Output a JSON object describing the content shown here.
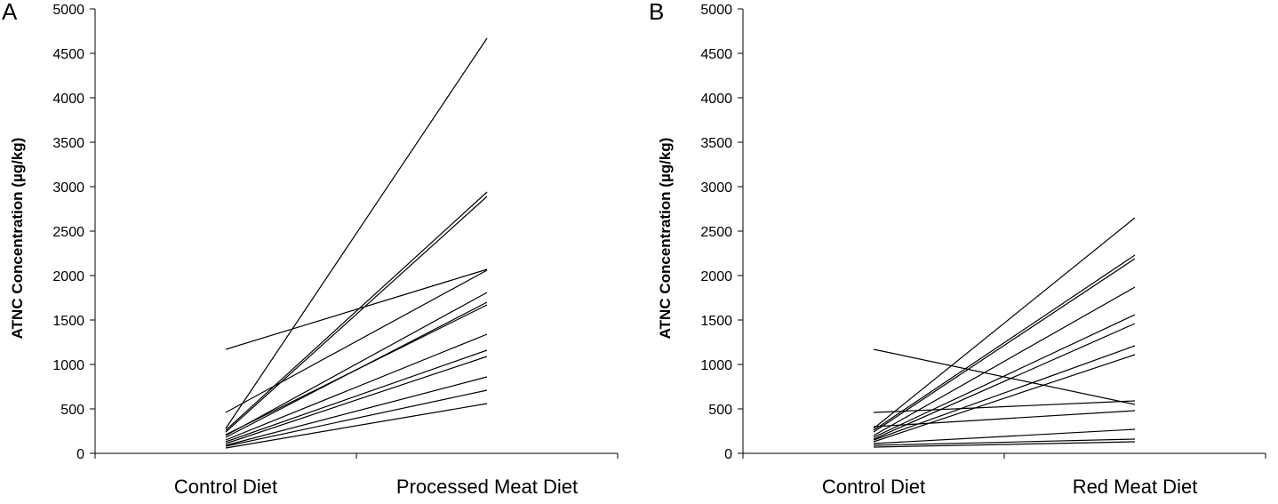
{
  "chart_data": [
    {
      "type": "line",
      "panel_label": "A",
      "ylabel": "ATNC Concentration (µg/kg)",
      "ylim": [
        0,
        5000
      ],
      "yticks": [
        0,
        500,
        1000,
        1500,
        2000,
        2500,
        3000,
        3500,
        4000,
        4500,
        5000
      ],
      "categories": [
        "Control Diet",
        "Processed Meat Diet"
      ],
      "grid": false,
      "legend": "none",
      "series": [
        {
          "values": [
            280,
            4670
          ]
        },
        {
          "values": [
            260,
            2940
          ]
        },
        {
          "values": [
            240,
            2890
          ]
        },
        {
          "values": [
            1170,
            2070
          ]
        },
        {
          "values": [
            460,
            2060
          ]
        },
        {
          "values": [
            200,
            1810
          ]
        },
        {
          "values": [
            180,
            1700
          ]
        },
        {
          "values": [
            210,
            1670
          ]
        },
        {
          "values": [
            150,
            1340
          ]
        },
        {
          "values": [
            130,
            1160
          ]
        },
        {
          "values": [
            110,
            1090
          ]
        },
        {
          "values": [
            90,
            860
          ]
        },
        {
          "values": [
            80,
            710
          ]
        },
        {
          "values": [
            60,
            560
          ]
        }
      ]
    },
    {
      "type": "line",
      "panel_label": "B",
      "ylabel": "ATNC Concentration (µg/kg)",
      "ylim": [
        0,
        5000
      ],
      "yticks": [
        0,
        500,
        1000,
        1500,
        2000,
        2500,
        3000,
        3500,
        4000,
        4500,
        5000
      ],
      "categories": [
        "Control Diet",
        "Red Meat Diet"
      ],
      "grid": false,
      "legend": "none",
      "series": [
        {
          "values": [
            280,
            2650
          ]
        },
        {
          "values": [
            260,
            2230
          ]
        },
        {
          "values": [
            240,
            2190
          ]
        },
        {
          "values": [
            200,
            1870
          ]
        },
        {
          "values": [
            180,
            1560
          ]
        },
        {
          "values": [
            160,
            1460
          ]
        },
        {
          "values": [
            150,
            1210
          ]
        },
        {
          "values": [
            130,
            1110
          ]
        },
        {
          "values": [
            1170,
            550
          ]
        },
        {
          "values": [
            460,
            590
          ]
        },
        {
          "values": [
            300,
            480
          ]
        },
        {
          "values": [
            110,
            270
          ]
        },
        {
          "values": [
            90,
            160
          ]
        },
        {
          "values": [
            70,
            130
          ]
        }
      ]
    }
  ]
}
